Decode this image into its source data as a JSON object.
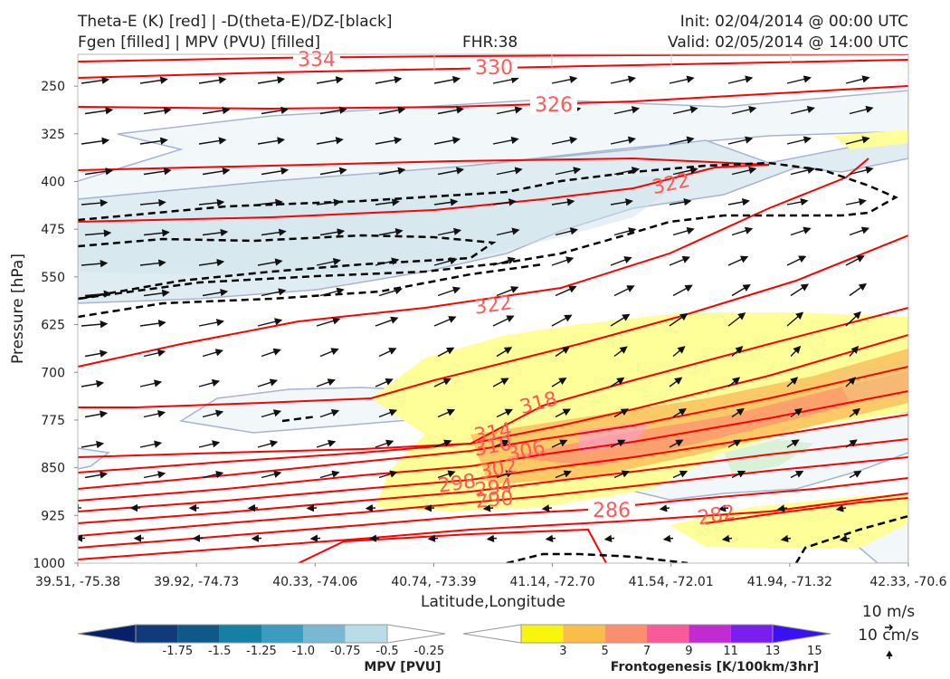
{
  "header": {
    "title_line1": "Theta-E (K) [red] | -D(theta-E)/DZ-[black]",
    "title_line2": "Fgen [filled] | MPV (PVU) [filled]",
    "fhr": "FHR:38",
    "init": "Init: 02/04/2014 @ 00:00 UTC",
    "valid": "Valid: 02/05/2014 @ 14:00 UTC"
  },
  "chart_data": {
    "type": "cross-section",
    "xlabel": "Latitude,Longitude",
    "ylabel": "Pressure [hPa]",
    "x_ticks": [
      "39.51, -75.38",
      "39.92, -74.73",
      "40.33, -74.06",
      "40.74, -73.39",
      "41.14, -72.70",
      "41.54, -72.01",
      "41.94, -71.32",
      "42.33, -70.6"
    ],
    "y_ticks": [
      250,
      325,
      400,
      475,
      550,
      625,
      700,
      775,
      850,
      925,
      1000
    ],
    "ylim": [
      200,
      1000
    ],
    "theta_e_labels": [
      "334",
      "330",
      "326",
      "322",
      "322",
      "318",
      "314",
      "310",
      "306",
      "302",
      "298",
      "294",
      "290",
      "286",
      "282"
    ],
    "wind_reference": [
      "10 m/s",
      "10 cm/s"
    ],
    "colorbars": [
      {
        "title": "MPV [PVU]",
        "ticks": [
          "-1.75",
          "-1.5",
          "-1.25",
          "-1.0",
          "-0.75",
          "-0.5",
          "-0.25"
        ],
        "colors": [
          "#08206a",
          "#113a7a",
          "#0d5a8a",
          "#1380a4",
          "#3a9dbf",
          "#7ab8d2",
          "#b9dce6",
          "#ffffff"
        ]
      },
      {
        "title": "Frontogenesis [K/100km/3hr]",
        "ticks": [
          "3",
          "5",
          "7",
          "9",
          "11",
          "13",
          "15"
        ],
        "colors": [
          "#ffffff",
          "#f7f50c",
          "#fbbd4a",
          "#fb8e6e",
          "#f85a9a",
          "#c22ad2",
          "#7a1ef0",
          "#3a10f6"
        ]
      }
    ],
    "colors": {
      "theta_e": "#ff0000",
      "dtheta_dz": "#000000",
      "mpv_fill": "#e0eef4",
      "fgen_fill": "#ffff99"
    }
  }
}
